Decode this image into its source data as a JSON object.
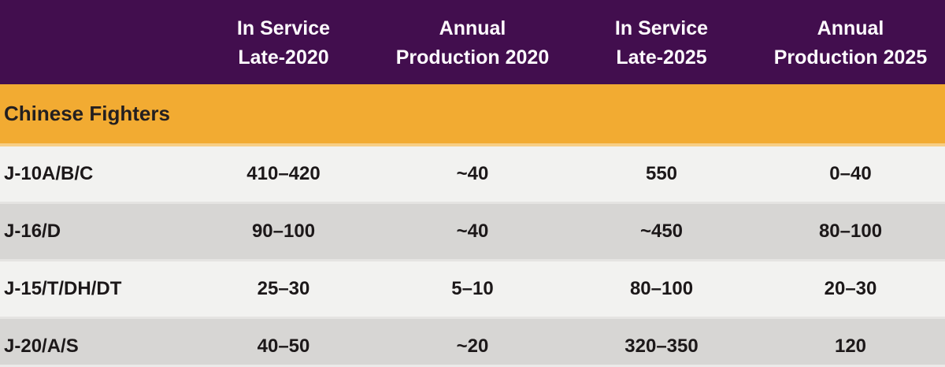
{
  "colors": {
    "purple": "#420E4E",
    "orange": "#F2AB32",
    "orange_sep": "#F7CE86",
    "row_light": "#F2F2F0",
    "row_dark": "#D7D6D4",
    "sep": "#E5E4E2",
    "header_text": "#FDFAFD",
    "dark_text": "#1C1819",
    "section_text": "#231F20",
    "bottom_edge": "#EBEAE9"
  },
  "table": {
    "section_title": "Chinese Fighters",
    "headers": [
      {
        "line1": "In Service",
        "line2": "Late-2020"
      },
      {
        "line1": "Annual",
        "line2": "Production 2020"
      },
      {
        "line1": "In Service",
        "line2": "Late-2025"
      },
      {
        "line1": "Annual",
        "line2": "Production 2025"
      }
    ],
    "rows": [
      {
        "label": "J-10A/B/C",
        "values": [
          "410–420",
          "~40",
          "550",
          "0–40"
        ]
      },
      {
        "label": "J-16/D",
        "values": [
          "90–100",
          "~40",
          "~450",
          "80–100"
        ]
      },
      {
        "label": "J-15/T/DH/DT",
        "values": [
          "25–30",
          "5–10",
          "80–100",
          "20–30"
        ]
      },
      {
        "label": "J-20/A/S",
        "values": [
          "40–50",
          "~20",
          "320–350",
          "120"
        ]
      }
    ]
  },
  "chart_data": {
    "type": "table",
    "title": "Chinese Fighters",
    "columns": [
      "",
      "In Service Late-2020",
      "Annual Production 2020",
      "In Service Late-2025",
      "Annual Production 2025"
    ],
    "rows": [
      [
        "J-10A/B/C",
        "410–420",
        "~40",
        "550",
        "0–40"
      ],
      [
        "J-16/D",
        "90–100",
        "~40",
        "~450",
        "80–100"
      ],
      [
        "J-15/T/DH/DT",
        "25–30",
        "5–10",
        "80–100",
        "20–30"
      ],
      [
        "J-20/A/S",
        "40–50",
        "~20",
        "320–350",
        "120"
      ]
    ]
  }
}
